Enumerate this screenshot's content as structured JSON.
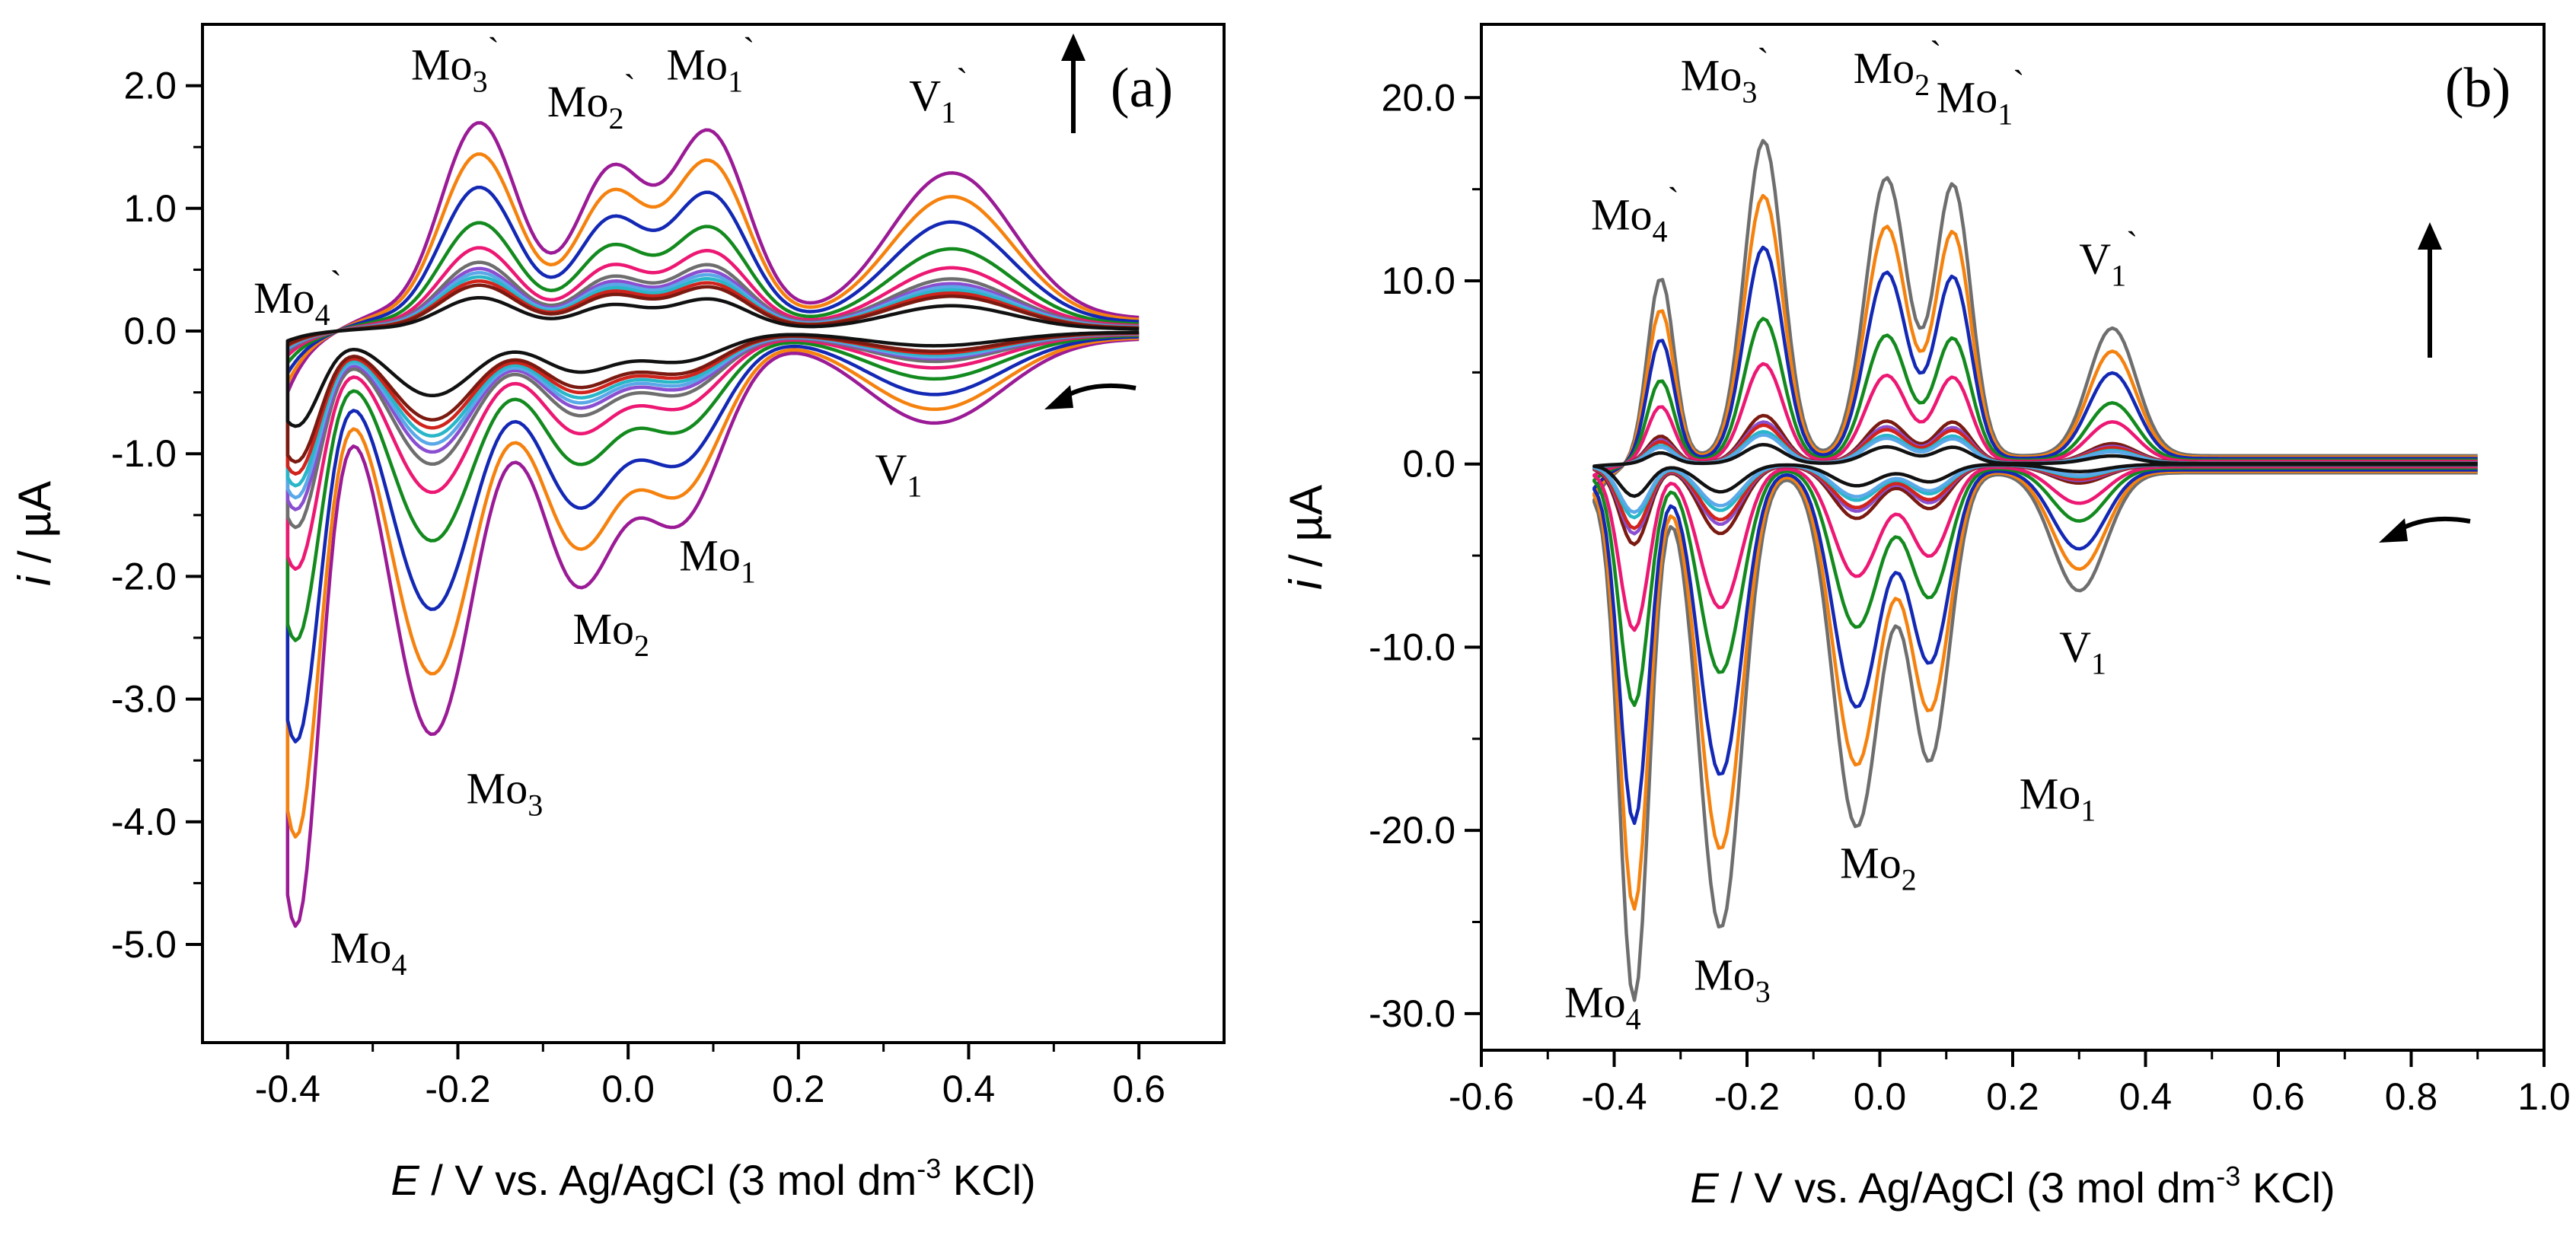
{
  "colors": {
    "purple": "#9b1b96",
    "orange": "#f5820f",
    "blue": "#1328b4",
    "green": "#138a1e",
    "pink": "#ec1873",
    "gray": "#6e6e6e",
    "violet": "#8a4fd0",
    "lightblue": "#5aa8e8",
    "cyan": "#28b6c8",
    "red": "#d0241c",
    "maroon": "#7a1a10",
    "black": "#111111"
  },
  "chart_data": [
    {
      "type": "line",
      "panel": "(a)",
      "xlabel": "E / V vs. Ag/AgCl (3 mol dm-3 KCl)",
      "ylabel": "i / µA",
      "xlim": [
        -0.5,
        0.7
      ],
      "ylim": [
        -5.8,
        2.5
      ],
      "xticks": [
        "-0.4",
        "-0.2",
        "0.0",
        "0.2",
        "0.4",
        "0.6"
      ],
      "yticks": [
        "-5.0",
        "-4.0",
        "-3.0",
        "-2.0",
        "-1.0",
        "0.0",
        "1.0",
        "2.0"
      ],
      "potential_window": [
        -0.4,
        0.6
      ],
      "grid": false,
      "peaks_cathodic": [
        {
          "name": "Mo4",
          "E": -0.39,
          "i": -5.0
        },
        {
          "name": "Mo3",
          "E": -0.23,
          "i": -3.5
        },
        {
          "name": "Mo2",
          "E": -0.06,
          "i": -2.1
        },
        {
          "name": "Mo1",
          "E": 0.06,
          "i": -1.6
        },
        {
          "name": "V1",
          "E": 0.36,
          "i": -0.75
        }
      ],
      "peaks_anodic": [
        {
          "name": "Mo4`",
          "E": -0.3,
          "i": 0.05
        },
        {
          "name": "Mo3`",
          "E": -0.175,
          "i": 1.95
        },
        {
          "name": "Mo2`",
          "E": -0.02,
          "i": 1.45
        },
        {
          "name": "Mo1`",
          "E": 0.095,
          "i": 1.85
        },
        {
          "name": "V1`",
          "E": 0.38,
          "i": 1.45
        }
      ],
      "series": [
        {
          "color": "purple",
          "scale": 1.0
        },
        {
          "color": "orange",
          "scale": 0.85
        },
        {
          "color": "blue",
          "scale": 0.69
        },
        {
          "color": "green",
          "scale": 0.52
        },
        {
          "color": "pink",
          "scale": 0.4
        },
        {
          "color": "gray",
          "scale": 0.33
        },
        {
          "color": "violet",
          "scale": 0.3
        },
        {
          "color": "lightblue",
          "scale": 0.28
        },
        {
          "color": "cyan",
          "scale": 0.26
        },
        {
          "color": "red",
          "scale": 0.24
        },
        {
          "color": "maroon",
          "scale": 0.22
        },
        {
          "color": "black",
          "scale": 0.16
        }
      ],
      "annotations": [
        {
          "text": "Mo",
          "sub": "3",
          "sup": "`"
        },
        {
          "text": "Mo",
          "sub": "2",
          "sup": "`"
        },
        {
          "text": "Mo",
          "sub": "1",
          "sup": "`"
        },
        {
          "text": "V",
          "sub": "1",
          "sup": "`"
        },
        {
          "text": "Mo",
          "sub": "4",
          "sup": "`"
        },
        {
          "text": "V",
          "sub": "1",
          "sup": ""
        },
        {
          "text": "Mo",
          "sub": "1",
          "sup": ""
        },
        {
          "text": "Mo",
          "sub": "2",
          "sup": ""
        },
        {
          "text": "Mo",
          "sub": "3",
          "sup": ""
        },
        {
          "text": "Mo",
          "sub": "4",
          "sup": ""
        }
      ]
    },
    {
      "type": "line",
      "panel": "(b)",
      "xlabel": "E / V vs. Ag/AgCl (3 mol dm-3 KCl)",
      "ylabel": "i / µA",
      "xlim": [
        -0.6,
        1.0
      ],
      "ylim": [
        -32.0,
        24.0
      ],
      "xticks": [
        "-0.6",
        "-0.4",
        "-0.2",
        "0.0",
        "0.2",
        "0.4",
        "0.6",
        "0.8",
        "1.0"
      ],
      "yticks": [
        "-30.0",
        "-20.0",
        "-10.0",
        "0.0",
        "10.0",
        "20.0"
      ],
      "potential_window": [
        -0.43,
        0.9
      ],
      "grid": false,
      "peaks_cathodic": [
        {
          "name": "Mo4",
          "E": -0.37,
          "i": -31.0
        },
        {
          "name": "Mo3",
          "E": -0.24,
          "i": -27.0
        },
        {
          "name": "Mo2",
          "E": -0.035,
          "i": -21.0
        },
        {
          "name": "Mo1",
          "E": 0.075,
          "i": -17.0
        },
        {
          "name": "V1",
          "E": 0.3,
          "i": -7.0
        }
      ],
      "peaks_anodic": [
        {
          "name": "Mo4`",
          "E": -0.33,
          "i": 12.0
        },
        {
          "name": "Mo3`",
          "E": -0.175,
          "i": 21.0
        },
        {
          "name": "Mo2`",
          "E": 0.01,
          "i": 18.5
        },
        {
          "name": "Mo1`",
          "E": 0.11,
          "i": 18.0
        },
        {
          "name": "V1`",
          "E": 0.35,
          "i": 8.5
        }
      ],
      "series": [
        {
          "color": "gray",
          "scale": 1.0
        },
        {
          "color": "orange",
          "scale": 0.83
        },
        {
          "color": "blue",
          "scale": 0.67
        },
        {
          "color": "green",
          "scale": 0.45
        },
        {
          "color": "pink",
          "scale": 0.31
        },
        {
          "color": "maroon",
          "scale": 0.15
        },
        {
          "color": "violet",
          "scale": 0.13
        },
        {
          "color": "red",
          "scale": 0.12
        },
        {
          "color": "cyan",
          "scale": 0.1
        },
        {
          "color": "lightblue",
          "scale": 0.09
        },
        {
          "color": "black",
          "scale": 0.06
        }
      ],
      "annotations": [
        {
          "text": "Mo",
          "sub": "4",
          "sup": "`"
        },
        {
          "text": "Mo",
          "sub": "3",
          "sup": "`"
        },
        {
          "text": "Mo",
          "sub": "2",
          "sup": "`"
        },
        {
          "text": "Mo",
          "sub": "1",
          "sup": "`"
        },
        {
          "text": "V",
          "sub": "1",
          "sup": "`"
        },
        {
          "text": "V",
          "sub": "1",
          "sup": ""
        },
        {
          "text": "Mo",
          "sub": "1",
          "sup": ""
        },
        {
          "text": "Mo",
          "sub": "2",
          "sup": ""
        },
        {
          "text": "Mo",
          "sub": "3",
          "sup": ""
        },
        {
          "text": "Mo",
          "sub": "4",
          "sup": ""
        }
      ]
    }
  ],
  "xlabel_parts": {
    "italic": "E",
    "before_sup": " / V vs. Ag/AgCl (3 mol dm",
    "sup": "-3",
    "after_sup": " KCl)"
  },
  "ylabel_parts": {
    "italic": "i",
    "rest": " / µA"
  }
}
